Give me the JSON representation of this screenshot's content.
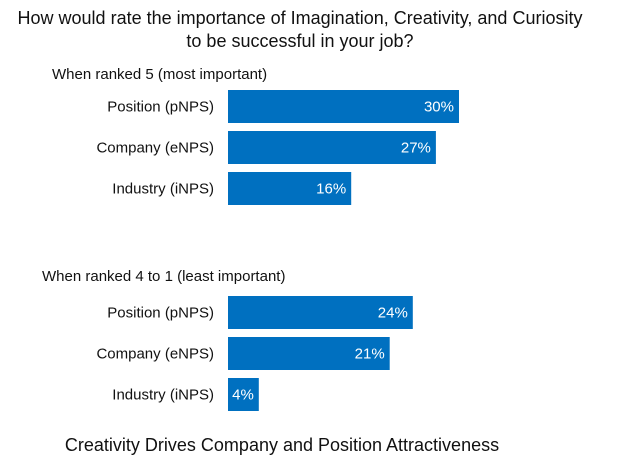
{
  "chart_data": {
    "type": "bar",
    "orientation": "horizontal",
    "title": "How would rate the importance of Imagination, Creativity, and Curiosity to be successful in your job?",
    "title_lines": [
      "How would rate the importance of Imagination, Creativity, and Curiosity",
      "to be successful in your job?"
    ],
    "xlim": [
      0,
      30
    ],
    "grid": false,
    "legend": "none",
    "bar_color": "#0070C0",
    "value_suffix": "%",
    "groups": [
      {
        "label": "When ranked 5 (most important)",
        "categories": [
          "Position (pNPS)",
          "Company (eNPS)",
          "Industry (iNPS)"
        ],
        "values": [
          30,
          27,
          16
        ]
      },
      {
        "label": "When ranked 4 to 1 (least important)",
        "categories": [
          "Position (pNPS)",
          "Company (eNPS)",
          "Industry (iNPS)"
        ],
        "values": [
          24,
          21,
          4
        ]
      }
    ],
    "footer": "Creativity Drives Company and Position Attractiveness"
  }
}
